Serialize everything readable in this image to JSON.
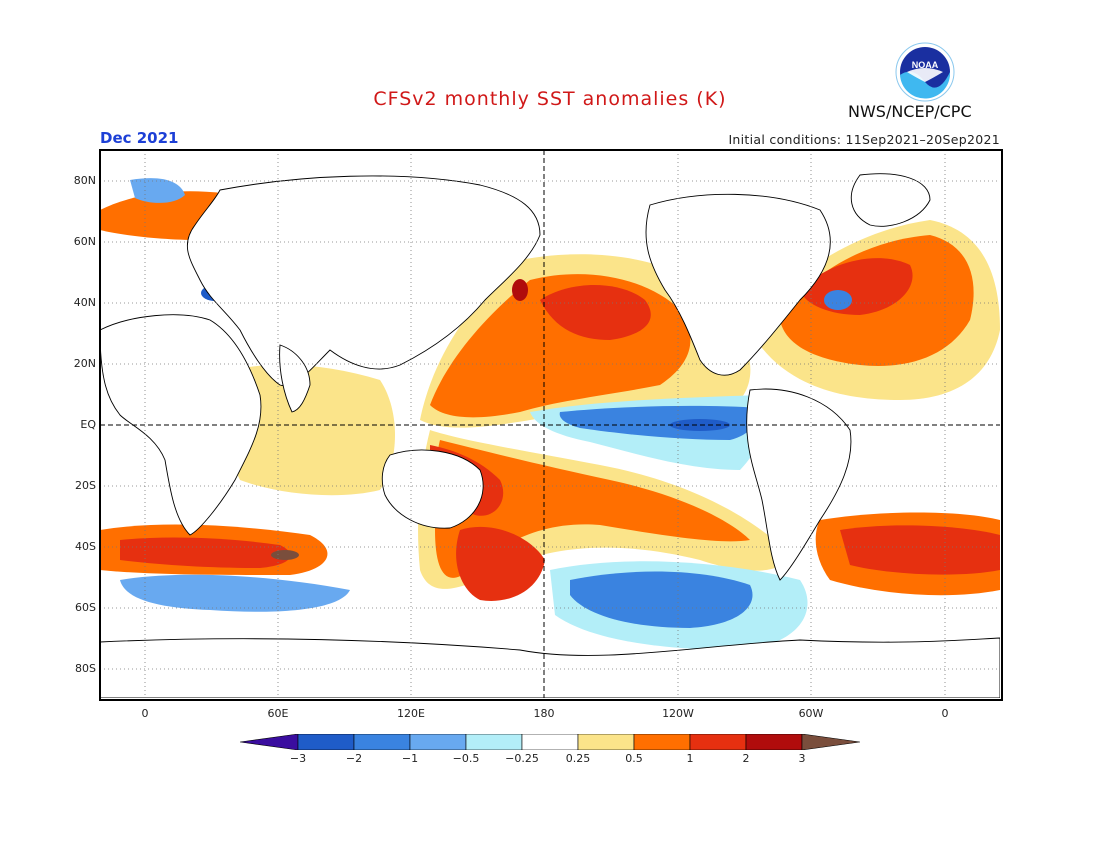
{
  "header": {
    "title": "CFSv2 monthly SST anomalies (K)",
    "valid_month": "Dec 2021",
    "initial_conditions": "Initial conditions: 11Sep2021–20Sep2021",
    "agency": "NWS/NCEP/CPC",
    "logo_text": "NOAA",
    "logo_icon": "noaa-logo-icon"
  },
  "map": {
    "lat_labels": [
      "80N",
      "60N",
      "40N",
      "20N",
      "EQ",
      "20S",
      "40S",
      "60S",
      "80S"
    ],
    "lon_labels": [
      "0",
      "60E",
      "120E",
      "180",
      "120W",
      "60W",
      "0"
    ],
    "grid_style": "dotted",
    "reference_lines": [
      "equator",
      "dateline"
    ]
  },
  "colorbar": {
    "labels": [
      "−3",
      "−2",
      "−1",
      "−0.5",
      "−0.25",
      "0.25",
      "0.5",
      "1",
      "2",
      "3"
    ],
    "colors": [
      "#3a0d9f",
      "#1f5cc8",
      "#3a83e0",
      "#68a9f0",
      "#b3eef8",
      "#ffffff",
      "#fbe48a",
      "#ff6f00",
      "#e63010",
      "#b00c0c",
      "#7a4e3c"
    ]
  }
}
